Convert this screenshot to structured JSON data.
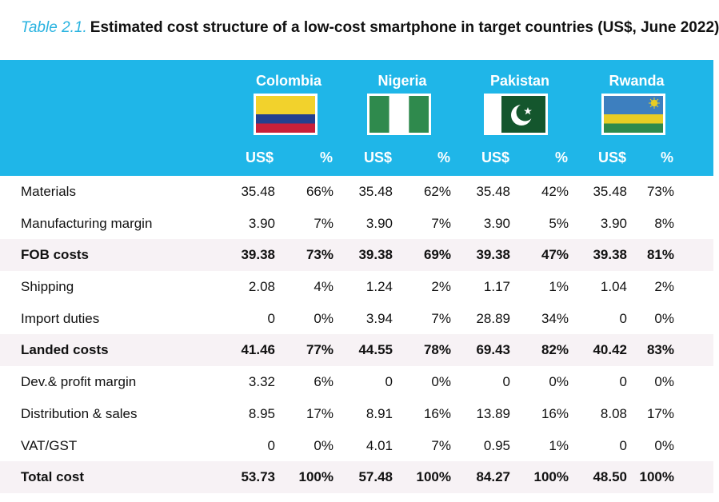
{
  "title": {
    "prefix": "Table 2.1.",
    "text": "Estimated cost structure of a low-cost smartphone in target countries (US$, June 2022)"
  },
  "countries": [
    {
      "name": "Colombia",
      "flag": "flag-colombia-icon"
    },
    {
      "name": "Nigeria",
      "flag": "flag-nigeria-icon"
    },
    {
      "name": "Pakistan",
      "flag": "flag-pakistan-icon"
    },
    {
      "name": "Rwanda",
      "flag": "flag-rwanda-icon"
    }
  ],
  "column_labels": {
    "usd": "US$",
    "pct": "%"
  },
  "colors": {
    "header_bg": "#1fb6e8",
    "title_prefix": "#29b3e0",
    "shaded_row": "#f7f2f5"
  },
  "rows": [
    {
      "label": "Materials",
      "bold": false,
      "shaded": false,
      "values": [
        "35.48",
        "66%",
        "35.48",
        "62%",
        "35.48",
        "42%",
        "35.48",
        "73%"
      ]
    },
    {
      "label": "Manufacturing margin",
      "bold": false,
      "shaded": false,
      "values": [
        "3.90",
        "7%",
        "3.90",
        "7%",
        "3.90",
        "5%",
        "3.90",
        "8%"
      ]
    },
    {
      "label": "FOB costs",
      "bold": true,
      "shaded": true,
      "values": [
        "39.38",
        "73%",
        "39.38",
        "69%",
        "39.38",
        "47%",
        "39.38",
        "81%"
      ]
    },
    {
      "label": "Shipping",
      "bold": false,
      "shaded": false,
      "values": [
        "2.08",
        "4%",
        "1.24",
        "2%",
        "1.17",
        "1%",
        "1.04",
        "2%"
      ]
    },
    {
      "label": "Import duties",
      "bold": false,
      "shaded": false,
      "values": [
        "0",
        "0%",
        "3.94",
        "7%",
        "28.89",
        "34%",
        "0",
        "0%"
      ]
    },
    {
      "label": "Landed costs",
      "bold": true,
      "shaded": true,
      "values": [
        "41.46",
        "77%",
        "44.55",
        "78%",
        "69.43",
        "82%",
        "40.42",
        "83%"
      ]
    },
    {
      "label": "Dev.& profit margin",
      "bold": false,
      "shaded": false,
      "values": [
        "3.32",
        "6%",
        "0",
        "0%",
        "0",
        "0%",
        "0",
        "0%"
      ]
    },
    {
      "label": "Distribution & sales",
      "bold": false,
      "shaded": false,
      "values": [
        "8.95",
        "17%",
        "8.91",
        "16%",
        "13.89",
        "16%",
        "8.08",
        "17%"
      ]
    },
    {
      "label": "VAT/GST",
      "bold": false,
      "shaded": false,
      "values": [
        "0",
        "0%",
        "4.01",
        "7%",
        "0.95",
        "1%",
        "0",
        "0%"
      ]
    },
    {
      "label": "Total cost",
      "bold": true,
      "shaded": true,
      "values": [
        "53.73",
        "100%",
        "57.48",
        "100%",
        "84.27",
        "100%",
        "48.50",
        "100%"
      ]
    }
  ]
}
